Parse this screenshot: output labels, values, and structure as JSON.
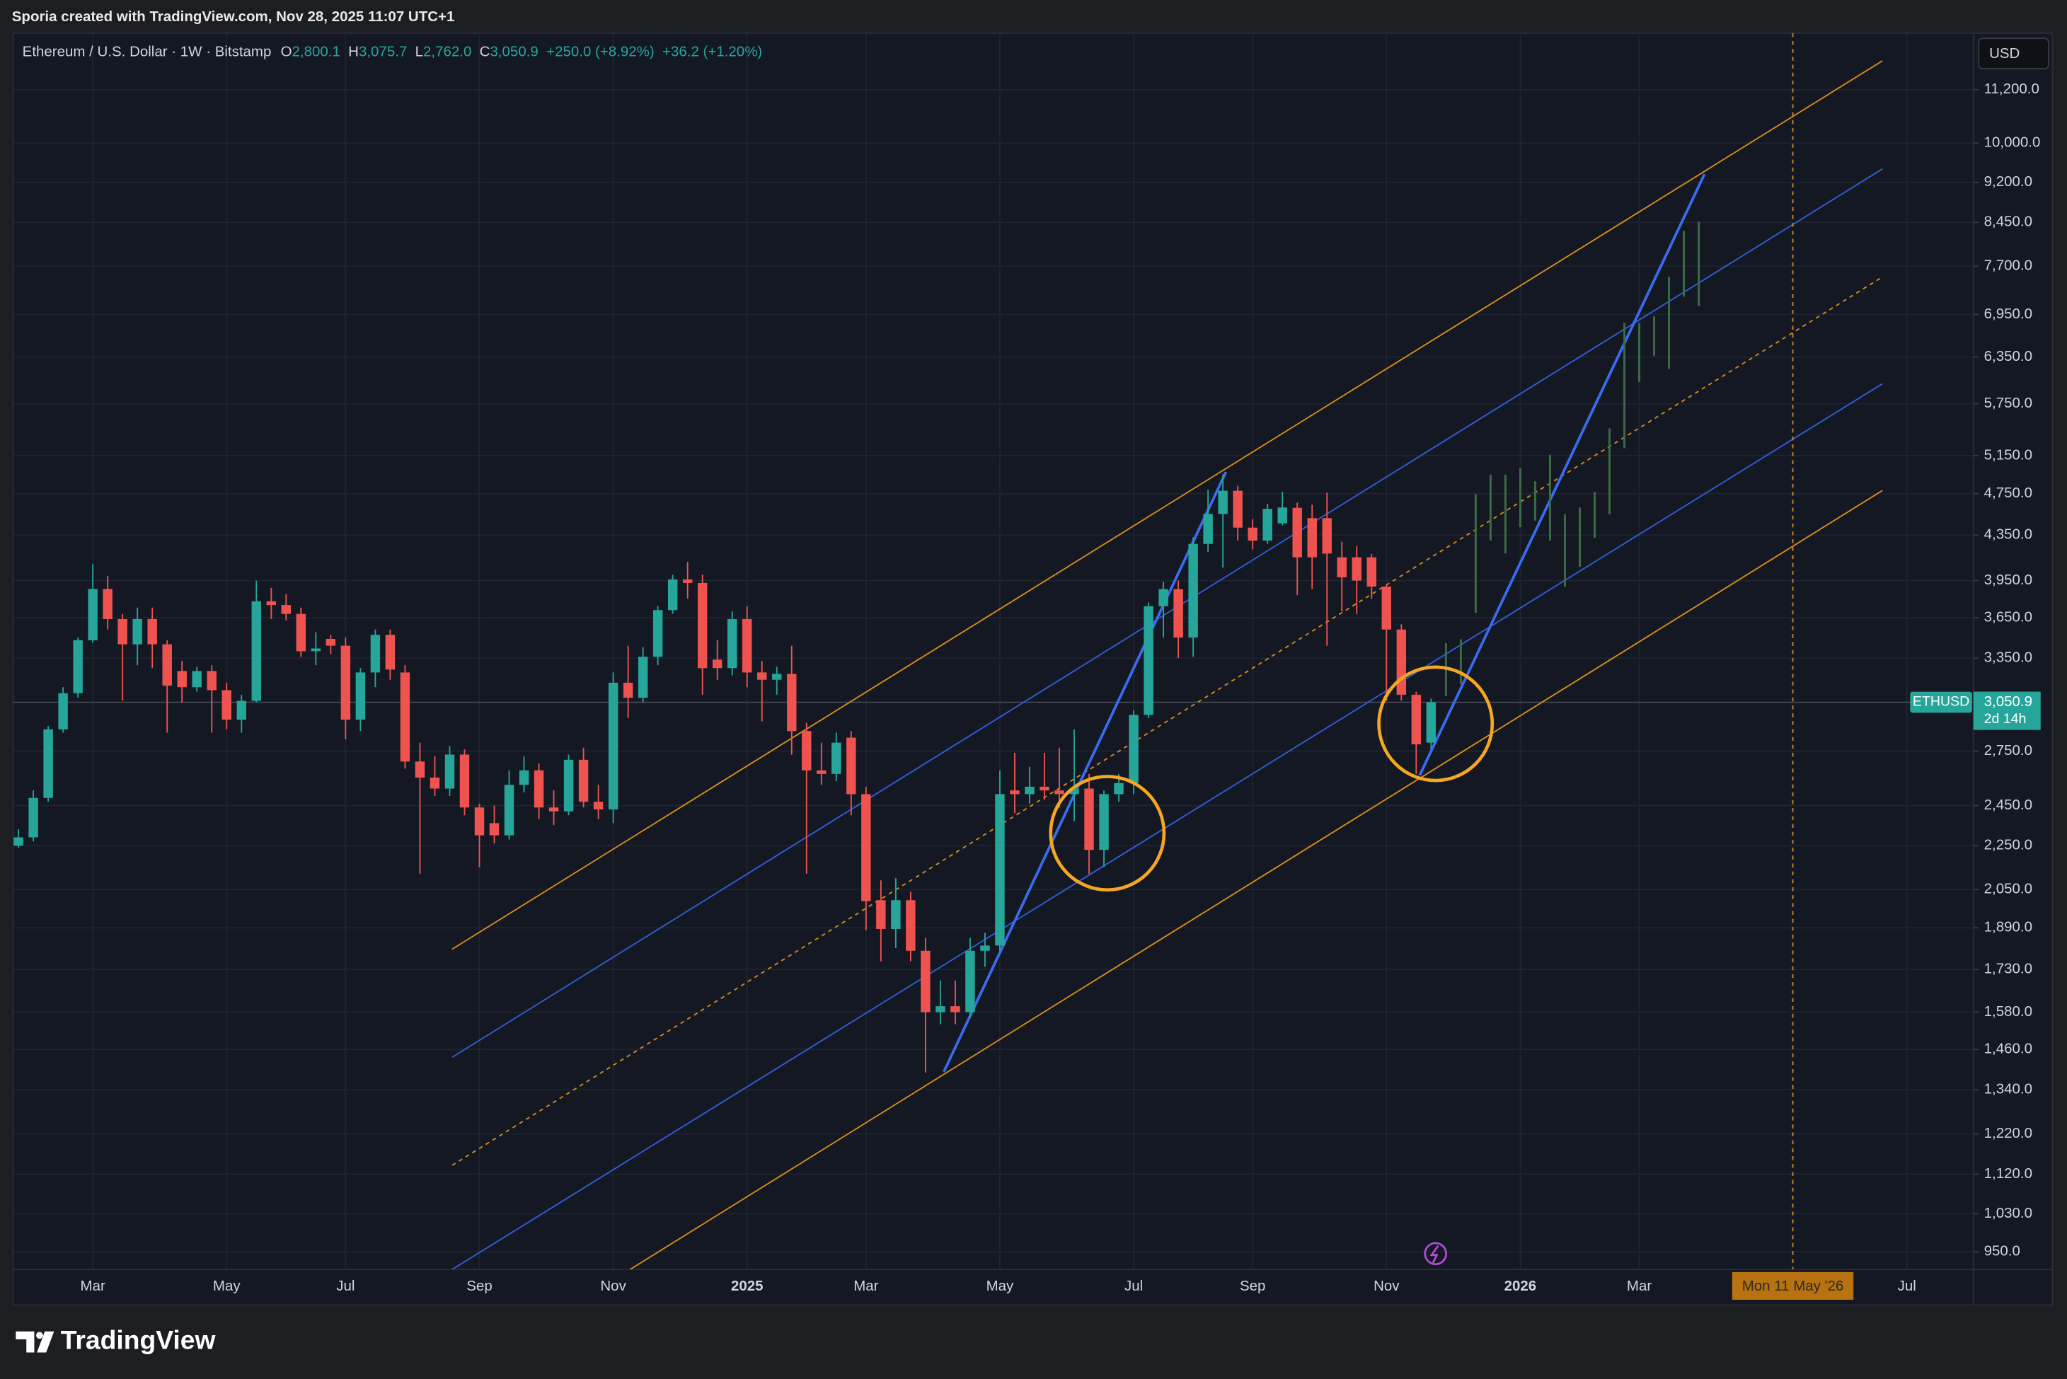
{
  "header_credit": "Sporia created with TradingView.com, Nov 28, 2025 11:07 UTC+1",
  "brand": "TradingView",
  "chart_data": {
    "type": "candlestick",
    "title": "Ethereum / U.S. Dollar · 1W · Bitstamp",
    "ohlc_legend": [
      {
        "key": "O",
        "value": "2,800.1"
      },
      {
        "key": "H",
        "value": "3,075.7"
      },
      {
        "key": "L",
        "value": "2,762.0"
      },
      {
        "key": "C",
        "value": "3,050.9"
      }
    ],
    "change": "+250.0 (+8.92%)",
    "change_2": "+36.2 (+1.20%)",
    "currency": "USD",
    "log_scale": true,
    "grid": true,
    "categories": [
      null,
      null,
      null,
      null,
      null,
      "Mar",
      null,
      null,
      null,
      null,
      null,
      null,
      null,
      null,
      "May",
      null,
      null,
      null,
      null,
      null,
      null,
      null,
      "Jul",
      null,
      null,
      null,
      null,
      null,
      null,
      null,
      null,
      "Sep",
      null,
      null,
      null,
      null,
      null,
      null,
      null,
      null,
      "Nov",
      null,
      null,
      null,
      null,
      null,
      null,
      null,
      null,
      "2025",
      null,
      null,
      null,
      null,
      null,
      null,
      null,
      "Mar",
      null,
      null,
      null,
      null,
      null,
      null,
      null,
      null,
      "May",
      null,
      null,
      null,
      null,
      null,
      null,
      null,
      null,
      "Jul",
      null,
      null,
      null,
      null,
      null,
      null,
      null,
      "Sep",
      null,
      null,
      null,
      null,
      null,
      null,
      null,
      null,
      "Nov",
      null,
      null,
      null,
      null,
      null,
      null,
      null,
      null,
      "2026",
      null,
      null,
      null,
      null,
      null,
      null,
      null,
      "Mar",
      null,
      null,
      null,
      null,
      null,
      null,
      null,
      null,
      null,
      null,
      null,
      null,
      null,
      null,
      null,
      null,
      null,
      "Jul",
      null,
      null,
      null,
      null
    ],
    "series": [
      {
        "name": "ETHUSD",
        "up_color": "#26a69a",
        "down_color": "#ef5350",
        "open": [
          2250,
          2290,
          2490,
          2880,
          3110,
          3480,
          3880,
          3640,
          3450,
          3640,
          3450,
          3260,
          3150,
          3260,
          3130,
          2940,
          3060,
          3780,
          3750,
          3680,
          3400,
          3490,
          3440,
          2940,
          3250,
          3520,
          3250,
          2690,
          2600,
          2540,
          2730,
          2440,
          2360,
          2300,
          2560,
          2640,
          2440,
          2420,
          2700,
          2470,
          2430,
          3180,
          3080,
          3360,
          3710,
          3960,
          3930,
          3340,
          3280,
          3640,
          3250,
          3200,
          3240,
          2870,
          2640,
          2620,
          2830,
          2510,
          2004,
          1885,
          2004,
          1800,
          1580,
          1600,
          1580,
          1800,
          1820,
          2530,
          2510,
          2550,
          2530,
          2510,
          2540,
          2230,
          2510,
          2570,
          2970,
          3741,
          3879,
          3500,
          4270,
          4550,
          4780,
          4420,
          4300,
          4460,
          4610,
          4510,
          4510,
          4150,
          4150,
          4150,
          3900,
          3560,
          3100,
          2800.1,
          null,
          null,
          null,
          null,
          null,
          null,
          null,
          null,
          null,
          null,
          null,
          null,
          null,
          null,
          null,
          null,
          null,
          null,
          null,
          null,
          null,
          null,
          null,
          null,
          null,
          null,
          null,
          null,
          null,
          null,
          null,
          null,
          null,
          null,
          null,
          null
        ],
        "high": [
          2330,
          2530,
          2900,
          3150,
          3500,
          4090,
          3990,
          3680,
          3730,
          3730,
          3480,
          3330,
          3290,
          3300,
          3180,
          3100,
          3950,
          3890,
          3840,
          3730,
          3540,
          3520,
          3500,
          3280,
          3560,
          3560,
          3300,
          2800,
          2720,
          2780,
          2760,
          2460,
          2450,
          2640,
          2720,
          2680,
          2530,
          2730,
          2770,
          2560,
          3250,
          3440,
          3430,
          3740,
          4000,
          4110,
          4000,
          3480,
          3700,
          3740,
          3330,
          3290,
          3440,
          2920,
          2800,
          2860,
          2870,
          2550,
          2090,
          2100,
          2040,
          1850,
          1690,
          1690,
          1850,
          1870,
          2640,
          2740,
          2660,
          2740,
          2770,
          2880,
          2620,
          2530,
          2620,
          3000,
          3770,
          3940,
          3950,
          4330,
          4790,
          4950,
          4830,
          4500,
          4650,
          4770,
          4660,
          4640,
          4760,
          4290,
          4250,
          4180,
          3920,
          3600,
          3120,
          3075.7,
          null,
          null,
          null,
          null,
          null,
          null,
          null,
          null,
          null,
          null,
          null,
          null,
          null,
          null,
          null,
          null,
          null,
          null,
          null,
          null,
          null,
          null,
          null,
          null,
          null,
          null,
          null,
          null,
          null,
          null,
          null,
          null,
          null,
          null,
          null,
          null
        ],
        "low": [
          2240,
          2270,
          2470,
          2860,
          3080,
          3460,
          3560,
          3060,
          3300,
          3280,
          2860,
          3050,
          3120,
          2860,
          2880,
          2860,
          3050,
          3640,
          3630,
          3360,
          3300,
          3380,
          2820,
          2870,
          3150,
          3200,
          2650,
          2120,
          2500,
          2500,
          2400,
          2150,
          2260,
          2280,
          2520,
          2380,
          2350,
          2400,
          2440,
          2380,
          2360,
          2950,
          3050,
          3300,
          3680,
          3800,
          3100,
          3200,
          3230,
          3150,
          2930,
          3100,
          2730,
          2120,
          2560,
          2580,
          2400,
          1880,
          1760,
          1810,
          1760,
          1390,
          1540,
          1540,
          1560,
          1740,
          1800,
          2410,
          2460,
          2480,
          2440,
          2370,
          2120,
          2150,
          2470,
          2510,
          2950,
          3500,
          3350,
          3360,
          4200,
          4060,
          4300,
          4220,
          4270,
          4440,
          3830,
          3880,
          3440,
          3700,
          3680,
          3800,
          3060,
          3060,
          2620,
          2762,
          null,
          null,
          null,
          null,
          null,
          null,
          null,
          null,
          null,
          null,
          null,
          null,
          null,
          null,
          null,
          null,
          null,
          null,
          null,
          null,
          null,
          null,
          null,
          null,
          null,
          null,
          null,
          null,
          null,
          null,
          null,
          null,
          null,
          null,
          null,
          null
        ],
        "close": [
          2290,
          2490,
          2880,
          3110,
          3480,
          3880,
          3640,
          3450,
          3640,
          3450,
          3160,
          3150,
          3260,
          3130,
          2940,
          3060,
          3780,
          3750,
          3680,
          3400,
          3420,
          3440,
          2940,
          3250,
          3520,
          3270,
          2690,
          2600,
          2540,
          2730,
          2440,
          2300,
          2300,
          2560,
          2640,
          2440,
          2420,
          2700,
          2470,
          2430,
          3180,
          3080,
          3360,
          3710,
          3960,
          3930,
          3280,
          3280,
          3640,
          3250,
          3200,
          3240,
          2870,
          2640,
          2620,
          2800,
          2510,
          2000,
          1885,
          2004,
          1800,
          1580,
          1600,
          1580,
          1800,
          1820,
          2510,
          2510,
          2550,
          2530,
          2510,
          2540,
          2230,
          2510,
          2570,
          2970,
          3740,
          3879,
          3500,
          4270,
          4550,
          4780,
          4420,
          4300,
          4600,
          4613,
          4150,
          4150,
          4183,
          3978,
          3950,
          3900,
          3560,
          3100,
          2790,
          3050.9,
          null,
          null,
          null,
          null,
          null,
          null,
          null,
          null,
          null,
          null,
          null,
          null,
          null,
          null,
          null,
          null,
          null,
          null,
          null,
          null,
          null,
          null,
          null,
          null,
          null,
          null,
          null,
          null,
          null,
          null,
          null,
          null,
          null,
          null,
          null,
          null
        ]
      }
    ],
    "projection": {
      "color": "#3a6b46",
      "high": [
        null,
        null,
        null,
        null,
        null,
        null,
        null,
        null,
        null,
        null,
        null,
        null,
        null,
        null,
        null,
        null,
        null,
        null,
        null,
        null,
        null,
        null,
        null,
        null,
        null,
        null,
        null,
        null,
        null,
        null,
        null,
        null,
        null,
        null,
        null,
        null,
        null,
        null,
        null,
        null,
        null,
        null,
        null,
        null,
        null,
        null,
        null,
        null,
        null,
        null,
        null,
        null,
        null,
        null,
        null,
        null,
        null,
        null,
        null,
        null,
        null,
        null,
        null,
        null,
        null,
        null,
        null,
        null,
        null,
        null,
        null,
        null,
        null,
        null,
        null,
        null,
        null,
        null,
        null,
        null,
        null,
        null,
        null,
        null,
        null,
        null,
        null,
        null,
        null,
        null,
        null,
        null,
        null,
        null,
        null,
        null,
        3458,
        3487,
        4745,
        4948,
        4948,
        5017,
        4877,
        5160,
        4548,
        4613,
        4770,
        5457,
        6826,
        6826,
        6922,
        7528,
        8301,
        8465,
        null,
        null,
        null,
        null,
        null,
        null,
        null,
        null,
        null,
        null,
        null,
        null,
        null,
        null,
        null,
        null,
        null,
        null
      ],
      "low": [
        null,
        null,
        null,
        null,
        null,
        null,
        null,
        null,
        null,
        null,
        null,
        null,
        null,
        null,
        null,
        null,
        null,
        null,
        null,
        null,
        null,
        null,
        null,
        null,
        null,
        null,
        null,
        null,
        null,
        null,
        null,
        null,
        null,
        null,
        null,
        null,
        null,
        null,
        null,
        null,
        null,
        null,
        null,
        null,
        null,
        null,
        null,
        null,
        null,
        null,
        null,
        null,
        null,
        null,
        null,
        null,
        null,
        null,
        null,
        null,
        null,
        null,
        null,
        null,
        null,
        null,
        null,
        null,
        null,
        null,
        null,
        null,
        null,
        null,
        null,
        null,
        null,
        null,
        null,
        null,
        null,
        null,
        null,
        null,
        null,
        null,
        null,
        null,
        null,
        null,
        null,
        null,
        null,
        null,
        null,
        null,
        3092,
        3170,
        3689,
        4300,
        4183,
        4423,
        4486,
        4300,
        3900,
        4068,
        4325,
        4548,
        5233,
        6020,
        6366,
        6190,
        7218,
        7078,
        null,
        null,
        null,
        null,
        null,
        null,
        null,
        null,
        null,
        null,
        null,
        null,
        null,
        null,
        null,
        null,
        null,
        null
      ]
    },
    "last_price": {
      "value": 3050.9,
      "label": "3,050.9",
      "countdown": "2d 14h"
    },
    "crosshair_label": "Mon 11 May '26",
    "ylim": [
      915,
      12630
    ],
    "yticks": [
      {
        "value": 11200,
        "label": "11,200.0"
      },
      {
        "value": 10000,
        "label": "10,000.0"
      },
      {
        "value": 9200,
        "label": "9,200.0"
      },
      {
        "value": 8450,
        "label": "8,450.0"
      },
      {
        "value": 7700,
        "label": "7,700.0"
      },
      {
        "value": 6950,
        "label": "6,950.0"
      },
      {
        "value": 6350,
        "label": "6,350.0"
      },
      {
        "value": 5750,
        "label": "5,750.0"
      },
      {
        "value": 5150,
        "label": "5,150.0"
      },
      {
        "value": 4750,
        "label": "4,750.0"
      },
      {
        "value": 4350,
        "label": "4,350.0"
      },
      {
        "value": 3950,
        "label": "3,950.0"
      },
      {
        "value": 3650,
        "label": "3,650.0"
      },
      {
        "value": 3350,
        "label": "3,350.0"
      },
      {
        "value": 2750,
        "label": "2,750.0"
      },
      {
        "value": 2450,
        "label": "2,450.0"
      },
      {
        "value": 2250,
        "label": "2,250.0"
      },
      {
        "value": 2050,
        "label": "2,050.0"
      },
      {
        "value": 1890,
        "label": "1,890.0"
      },
      {
        "value": 1730,
        "label": "1,730.0"
      },
      {
        "value": 1580,
        "label": "1,580.0"
      },
      {
        "value": 1460,
        "label": "1,460.0"
      },
      {
        "value": 1340,
        "label": "1,340.0"
      },
      {
        "value": 1220,
        "label": "1,220.0"
      },
      {
        "value": 1120,
        "label": "1,120.0"
      },
      {
        "value": 1030,
        "label": "1,030.0"
      },
      {
        "value": 950,
        "label": "950.0"
      }
    ]
  }
}
